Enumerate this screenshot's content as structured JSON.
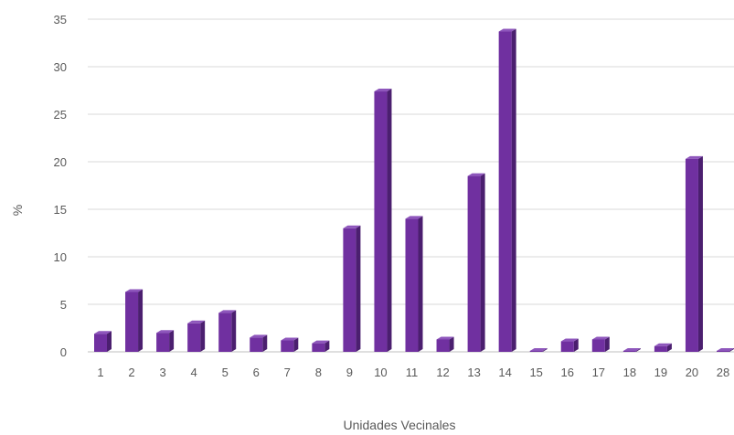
{
  "chart_data": {
    "type": "bar",
    "xlabel": "Unidades Vecinales",
    "ylabel": "%",
    "ylim": [
      0,
      35
    ],
    "yticks": [
      0,
      5,
      10,
      15,
      20,
      25,
      30,
      35
    ],
    "grid": true,
    "categories": [
      "1",
      "2",
      "3",
      "4",
      "5",
      "6",
      "7",
      "8",
      "9",
      "10",
      "11",
      "12",
      "13",
      "14",
      "15",
      "16",
      "17",
      "18",
      "19",
      "20",
      "28"
    ],
    "values": [
      1.9,
      6.3,
      2.0,
      3.0,
      4.1,
      1.5,
      1.2,
      0.9,
      13.0,
      27.4,
      14.0,
      1.3,
      18.5,
      33.7,
      0.1,
      1.1,
      1.3,
      0.1,
      0.6,
      20.3,
      0.1
    ],
    "colors": {
      "bar_front": "#7030a0",
      "bar_side": "#4b1f6f",
      "bar_top": "#8e56bc"
    }
  }
}
